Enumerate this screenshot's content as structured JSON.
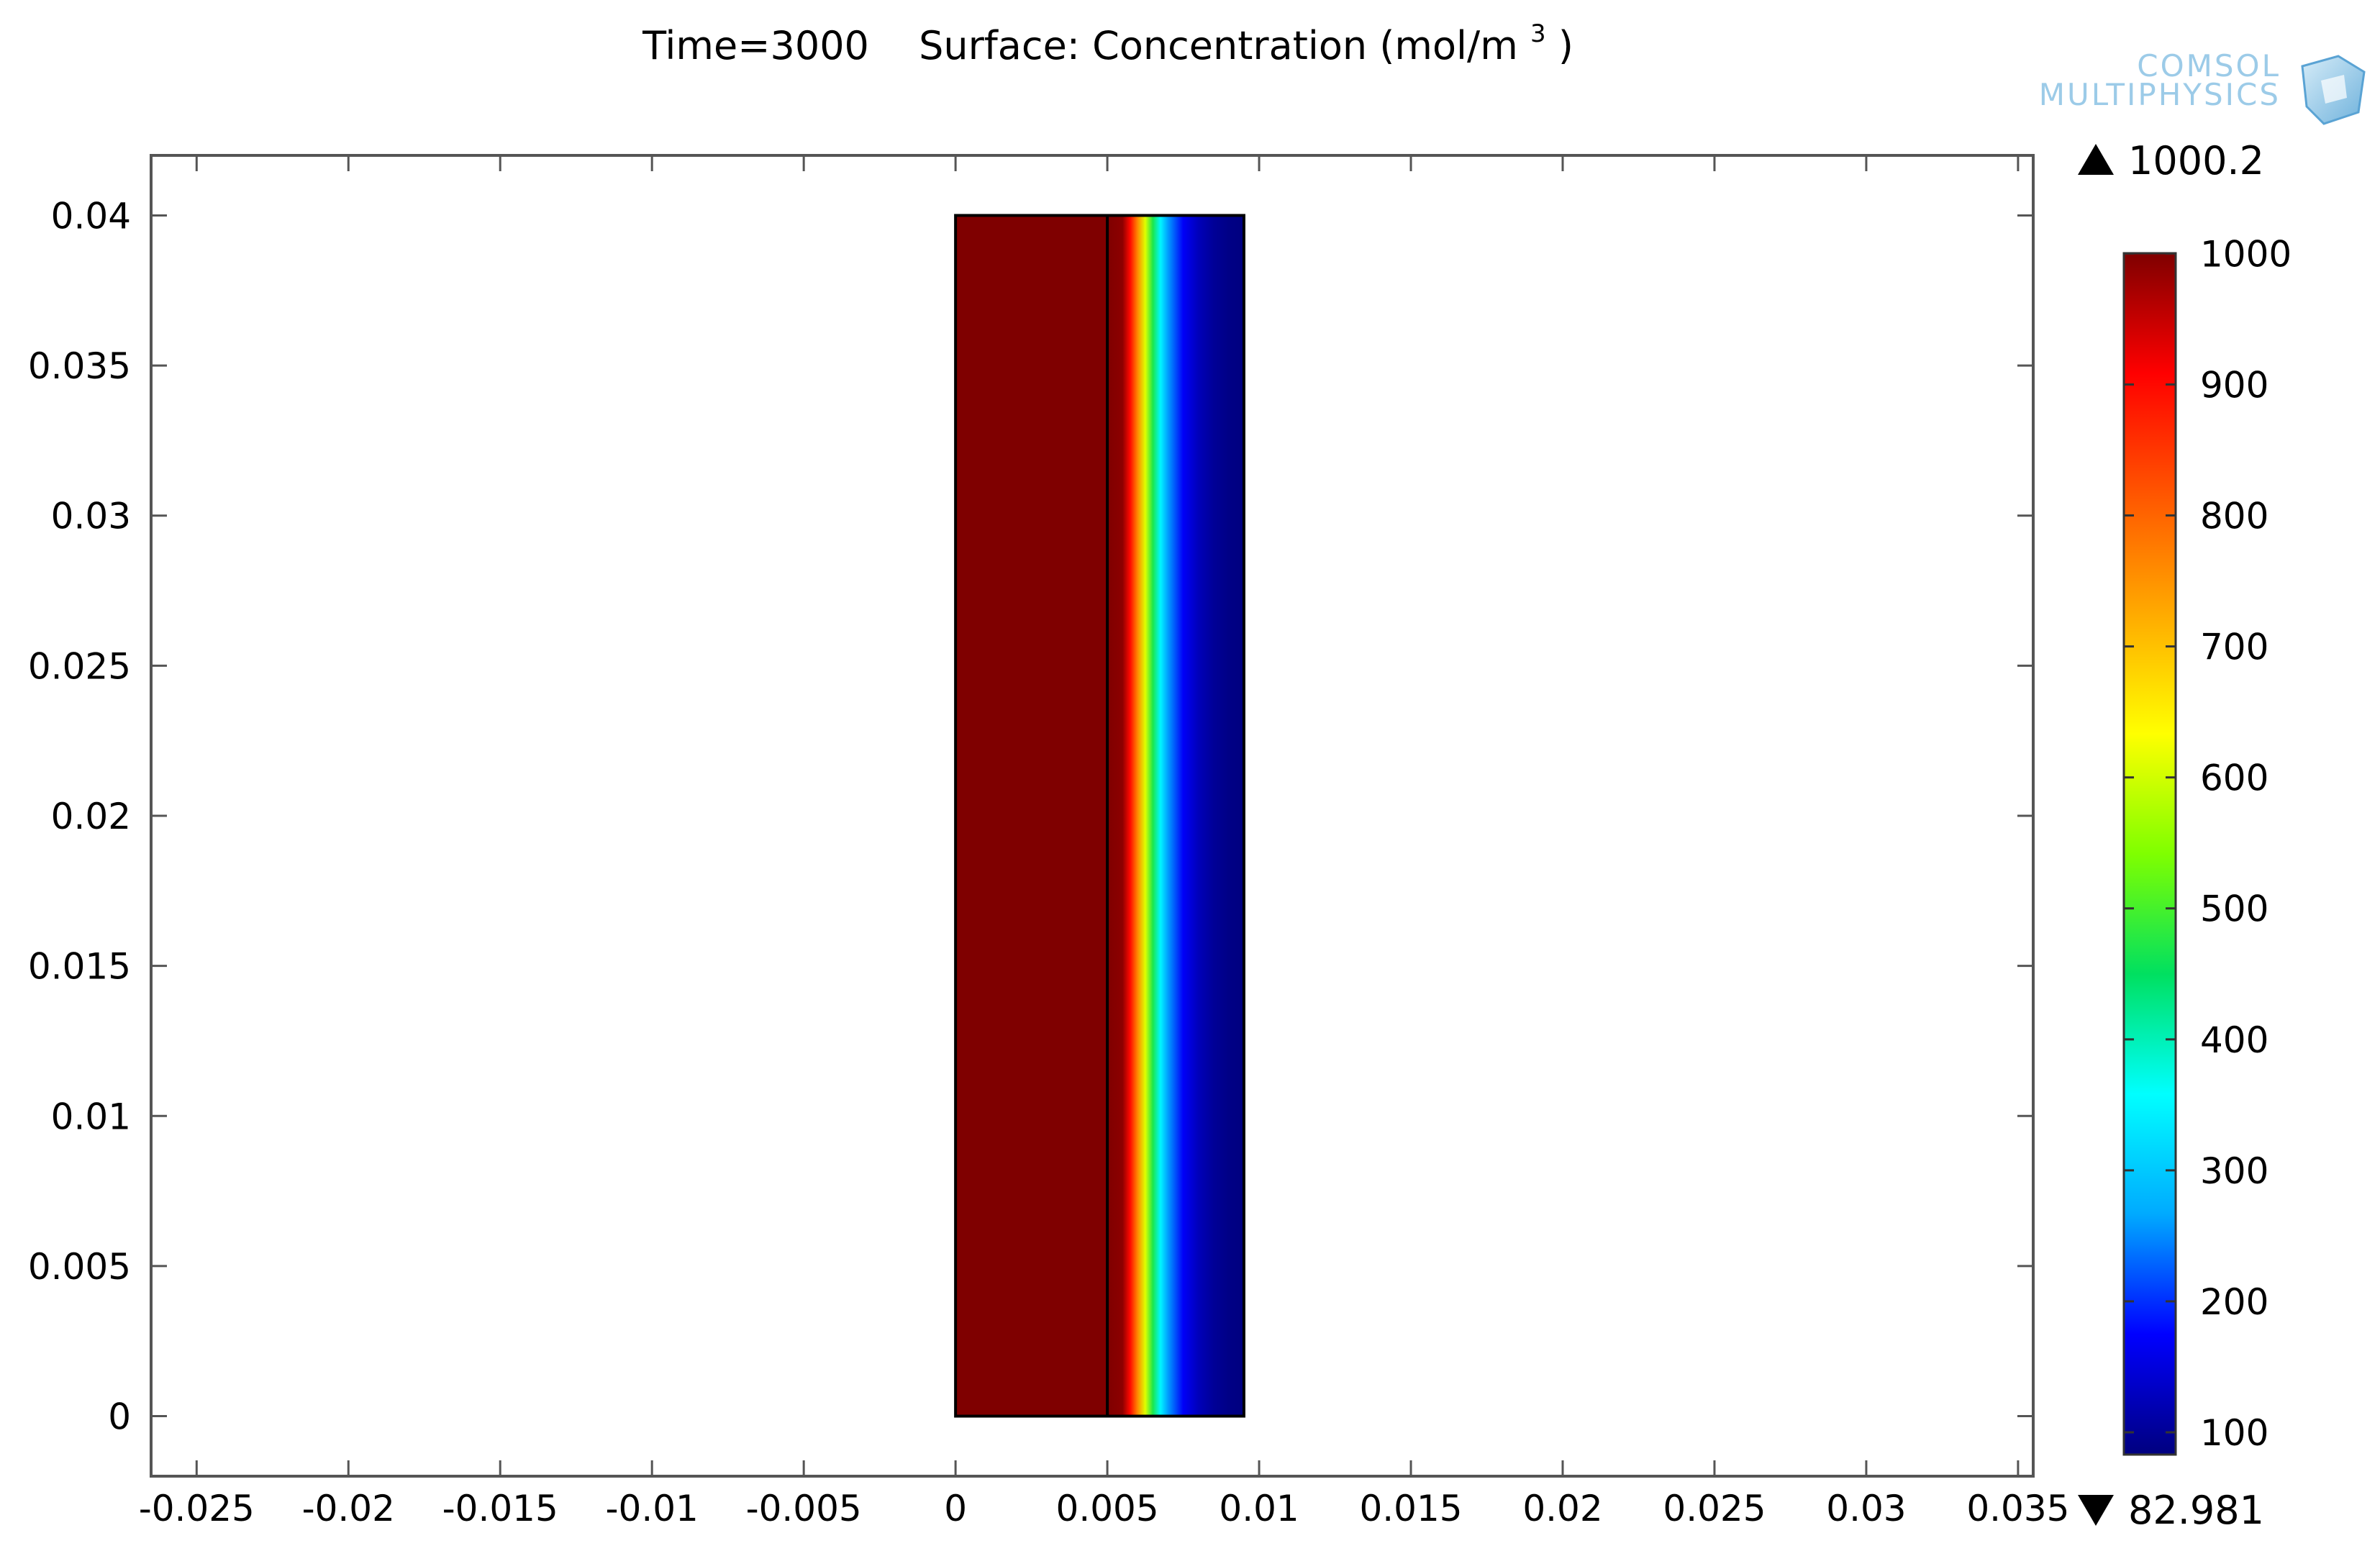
{
  "title": {
    "time": "Time=3000",
    "surface": "Surface: Concentration (mol/m",
    "superscript": "3",
    "close": ")"
  },
  "logo": {
    "line1": "COMSOL",
    "line2": "MULTIPHYSICS",
    "color": "#8fc6e6"
  },
  "chart_data": {
    "type": "heatmap",
    "title": "Time=3000   Surface: Concentration (mol/m3)",
    "xlim": [
      -0.0265,
      0.0355
    ],
    "ylim": [
      -0.002,
      0.042
    ],
    "x_ticks": [
      {
        "v": -0.025,
        "label": "-0.025"
      },
      {
        "v": -0.02,
        "label": "-0.02"
      },
      {
        "v": -0.015,
        "label": "-0.015"
      },
      {
        "v": -0.01,
        "label": "-0.01"
      },
      {
        "v": -0.005,
        "label": "-0.005"
      },
      {
        "v": 0,
        "label": "0"
      },
      {
        "v": 0.005,
        "label": "0.005"
      },
      {
        "v": 0.01,
        "label": "0.01"
      },
      {
        "v": 0.015,
        "label": "0.015"
      },
      {
        "v": 0.02,
        "label": "0.02"
      },
      {
        "v": 0.025,
        "label": "0.025"
      },
      {
        "v": 0.03,
        "label": "0.03"
      },
      {
        "v": 0.035,
        "label": "0.035"
      }
    ],
    "y_ticks": [
      {
        "v": 0,
        "label": "0"
      },
      {
        "v": 0.005,
        "label": "0.005"
      },
      {
        "v": 0.01,
        "label": "0.01"
      },
      {
        "v": 0.015,
        "label": "0.015"
      },
      {
        "v": 0.02,
        "label": "0.02"
      },
      {
        "v": 0.025,
        "label": "0.025"
      },
      {
        "v": 0.03,
        "label": "0.03"
      },
      {
        "v": 0.035,
        "label": "0.035"
      },
      {
        "v": 0.04,
        "label": "0.04"
      }
    ],
    "domain": {
      "x_min": 0,
      "x_max": 0.0095,
      "y_min": 0,
      "y_max": 0.04
    },
    "interface_x": 0.005,
    "profile": [
      {
        "x": 0,
        "c": 1000
      },
      {
        "x": 0.005,
        "c": 1000
      },
      {
        "x": 0.0055,
        "c": 990
      },
      {
        "x": 0.00575,
        "c": 900
      },
      {
        "x": 0.006,
        "c": 760
      },
      {
        "x": 0.00625,
        "c": 610
      },
      {
        "x": 0.0065,
        "c": 470
      },
      {
        "x": 0.00675,
        "c": 350
      },
      {
        "x": 0.007,
        "c": 260
      },
      {
        "x": 0.0075,
        "c": 170
      },
      {
        "x": 0.008,
        "c": 125
      },
      {
        "x": 0.0085,
        "c": 100
      },
      {
        "x": 0.009,
        "c": 88
      },
      {
        "x": 0.0095,
        "c": 83
      }
    ],
    "colorbar": {
      "min": 82.981,
      "max": 1000.2,
      "max_label": "1000.2",
      "min_label": "82.981",
      "ticks": [
        {
          "v": 1000,
          "label": "1000"
        },
        {
          "v": 900,
          "label": "900"
        },
        {
          "v": 800,
          "label": "800"
        },
        {
          "v": 700,
          "label": "700"
        },
        {
          "v": 600,
          "label": "600"
        },
        {
          "v": 500,
          "label": "500"
        },
        {
          "v": 400,
          "label": "400"
        },
        {
          "v": 300,
          "label": "300"
        },
        {
          "v": 200,
          "label": "200"
        },
        {
          "v": 100,
          "label": "100"
        }
      ],
      "colormap": "rainbow",
      "colors": [
        "#00007f",
        "#0000ff",
        "#00aaff",
        "#00ffff",
        "#00e060",
        "#7fff00",
        "#ffff00",
        "#ffaa00",
        "#ff5500",
        "#ff0000",
        "#7f0000"
      ]
    }
  }
}
